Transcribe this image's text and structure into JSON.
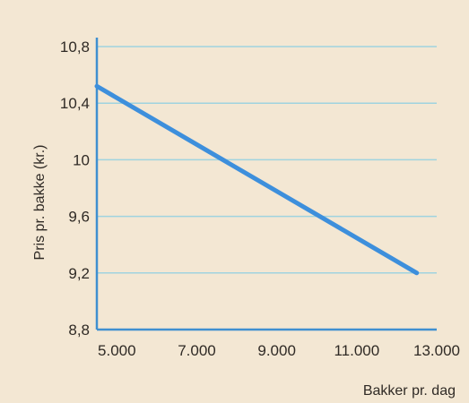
{
  "chart_data": {
    "type": "line",
    "xlabel": "Bakker pr. dag",
    "ylabel": "Pris pr. bakke (kr.)",
    "xlim": [
      4500,
      13000
    ],
    "ylim": [
      8.8,
      10.8
    ],
    "x_ticks": [
      "5.000",
      "7.000",
      "9.000",
      "11.000",
      "13.000"
    ],
    "x_tick_values": [
      5000,
      7000,
      9000,
      11000,
      13000
    ],
    "y_ticks": [
      "8,8",
      "9,2",
      "9,6",
      "10",
      "10,4",
      "10,8"
    ],
    "y_tick_values": [
      8.8,
      9.2,
      9.6,
      10.0,
      10.4,
      10.8
    ],
    "grid": "horizontal",
    "series": [
      {
        "points": [
          {
            "x": 4500,
            "y": 10.52
          },
          {
            "x": 12500,
            "y": 9.2
          }
        ]
      }
    ],
    "colors": {
      "background": "#f3e7d3",
      "grid": "#9fd3df",
      "axis": "#3f8fd0",
      "line": "#3d8fdc",
      "text": "#2f2a25"
    }
  }
}
